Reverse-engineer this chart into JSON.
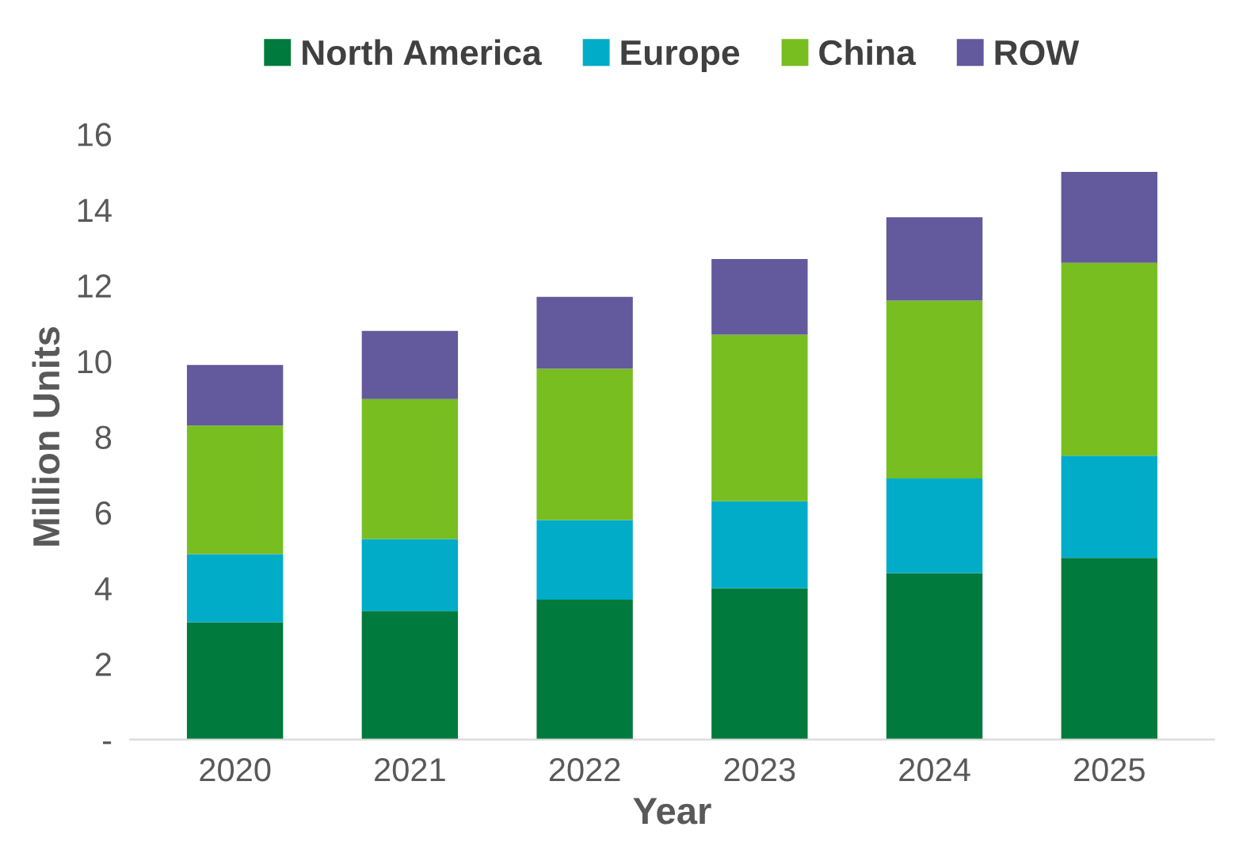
{
  "chart_data": {
    "type": "bar",
    "stacked": true,
    "xlabel": "Year",
    "ylabel": "Million Units",
    "categories": [
      "2020",
      "2021",
      "2022",
      "2023",
      "2024",
      "2025"
    ],
    "series": [
      {
        "name": "North America",
        "color": "#007a3d",
        "values": [
          3.1,
          3.4,
          3.7,
          4.0,
          4.4,
          4.8
        ]
      },
      {
        "name": "Europe",
        "color": "#00acc8",
        "values": [
          1.8,
          1.9,
          2.1,
          2.3,
          2.5,
          2.7
        ]
      },
      {
        "name": "China",
        "color": "#78be20",
        "values": [
          3.4,
          3.7,
          4.0,
          4.4,
          4.7,
          5.1
        ]
      },
      {
        "name": "ROW",
        "color": "#625a9c",
        "values": [
          1.6,
          1.8,
          1.9,
          2.0,
          2.2,
          2.4
        ]
      }
    ],
    "ylim": [
      0,
      16
    ],
    "yticks": [
      {
        "value": 0,
        "label": "-"
      },
      2,
      4,
      6,
      8,
      10,
      12,
      14,
      16
    ],
    "grid": false,
    "legend": "top"
  }
}
